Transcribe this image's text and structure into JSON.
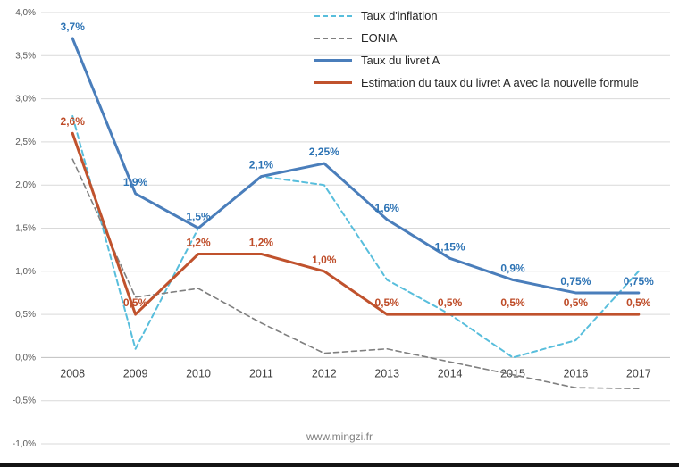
{
  "watermark": "www.mingzi.fr",
  "chart_data": {
    "type": "line",
    "title": "",
    "xlabel": "",
    "ylabel": "",
    "watermark": "www.mingzi.fr",
    "grid": true,
    "legend_position": "top",
    "ylim": [
      -1.0,
      4.0
    ],
    "categories": [
      "2008",
      "2009",
      "2010",
      "2011",
      "2012",
      "2013",
      "2014",
      "2015",
      "2016",
      "2017"
    ],
    "yticks": [
      {
        "v": 4.0,
        "label": "4,0%"
      },
      {
        "v": 3.5,
        "label": "3,5%"
      },
      {
        "v": 3.0,
        "label": "3,0%"
      },
      {
        "v": 2.5,
        "label": "2,5%"
      },
      {
        "v": 2.0,
        "label": "2,0%"
      },
      {
        "v": 1.5,
        "label": "1,5%"
      },
      {
        "v": 1.0,
        "label": "1,0%"
      },
      {
        "v": 0.5,
        "label": "0,5%"
      },
      {
        "v": 0.0,
        "label": "0,0%"
      },
      {
        "v": -0.5,
        "label": "-0,5%"
      },
      {
        "v": -1.0,
        "label": "-1,0%"
      }
    ],
    "series": [
      {
        "id": "inflation",
        "name": "Taux d'inflation",
        "color": "#58BEDC",
        "dash": "6 4",
        "width": 2,
        "values": [
          2.8,
          0.1,
          1.5,
          2.1,
          2.0,
          0.9,
          0.5,
          0.0,
          0.2,
          1.0
        ],
        "point_labels": null,
        "label_color": null
      },
      {
        "id": "eonia",
        "name": "EONIA",
        "color": "#7F7F7F",
        "dash": "6 4",
        "width": 1.6,
        "values": [
          2.3,
          0.7,
          0.8,
          0.4,
          0.05,
          0.1,
          -0.05,
          -0.2,
          -0.35,
          -0.36
        ],
        "point_labels": null,
        "label_color": null
      },
      {
        "id": "livret-a",
        "name": "Taux du livret A",
        "color": "#4A7EBB",
        "dash": null,
        "width": 3,
        "values": [
          3.7,
          1.9,
          1.5,
          2.1,
          2.25,
          1.6,
          1.15,
          0.9,
          0.75,
          0.75
        ],
        "point_labels": [
          "3,7%",
          "1,9%",
          "1,5%",
          "2,1%",
          "2,25%",
          "1,6%",
          "1,15%",
          "0,9%",
          "0,75%",
          "0,75%"
        ],
        "label_color": "#2E74B5"
      },
      {
        "id": "estimation",
        "name": "Estimation du taux du livret A avec la nouvelle formule",
        "color": "#C0522D",
        "dash": null,
        "width": 3,
        "values": [
          2.6,
          0.5,
          1.2,
          1.2,
          1.0,
          0.5,
          0.5,
          0.5,
          0.5,
          0.5
        ],
        "point_labels": [
          "2,6%",
          "0,5%",
          "1,2%",
          "1,2%",
          "1,0%",
          "0,5%",
          "0,5%",
          "0,5%",
          "0,5%",
          "0,5%"
        ],
        "label_color": "#BE4B27"
      }
    ]
  }
}
